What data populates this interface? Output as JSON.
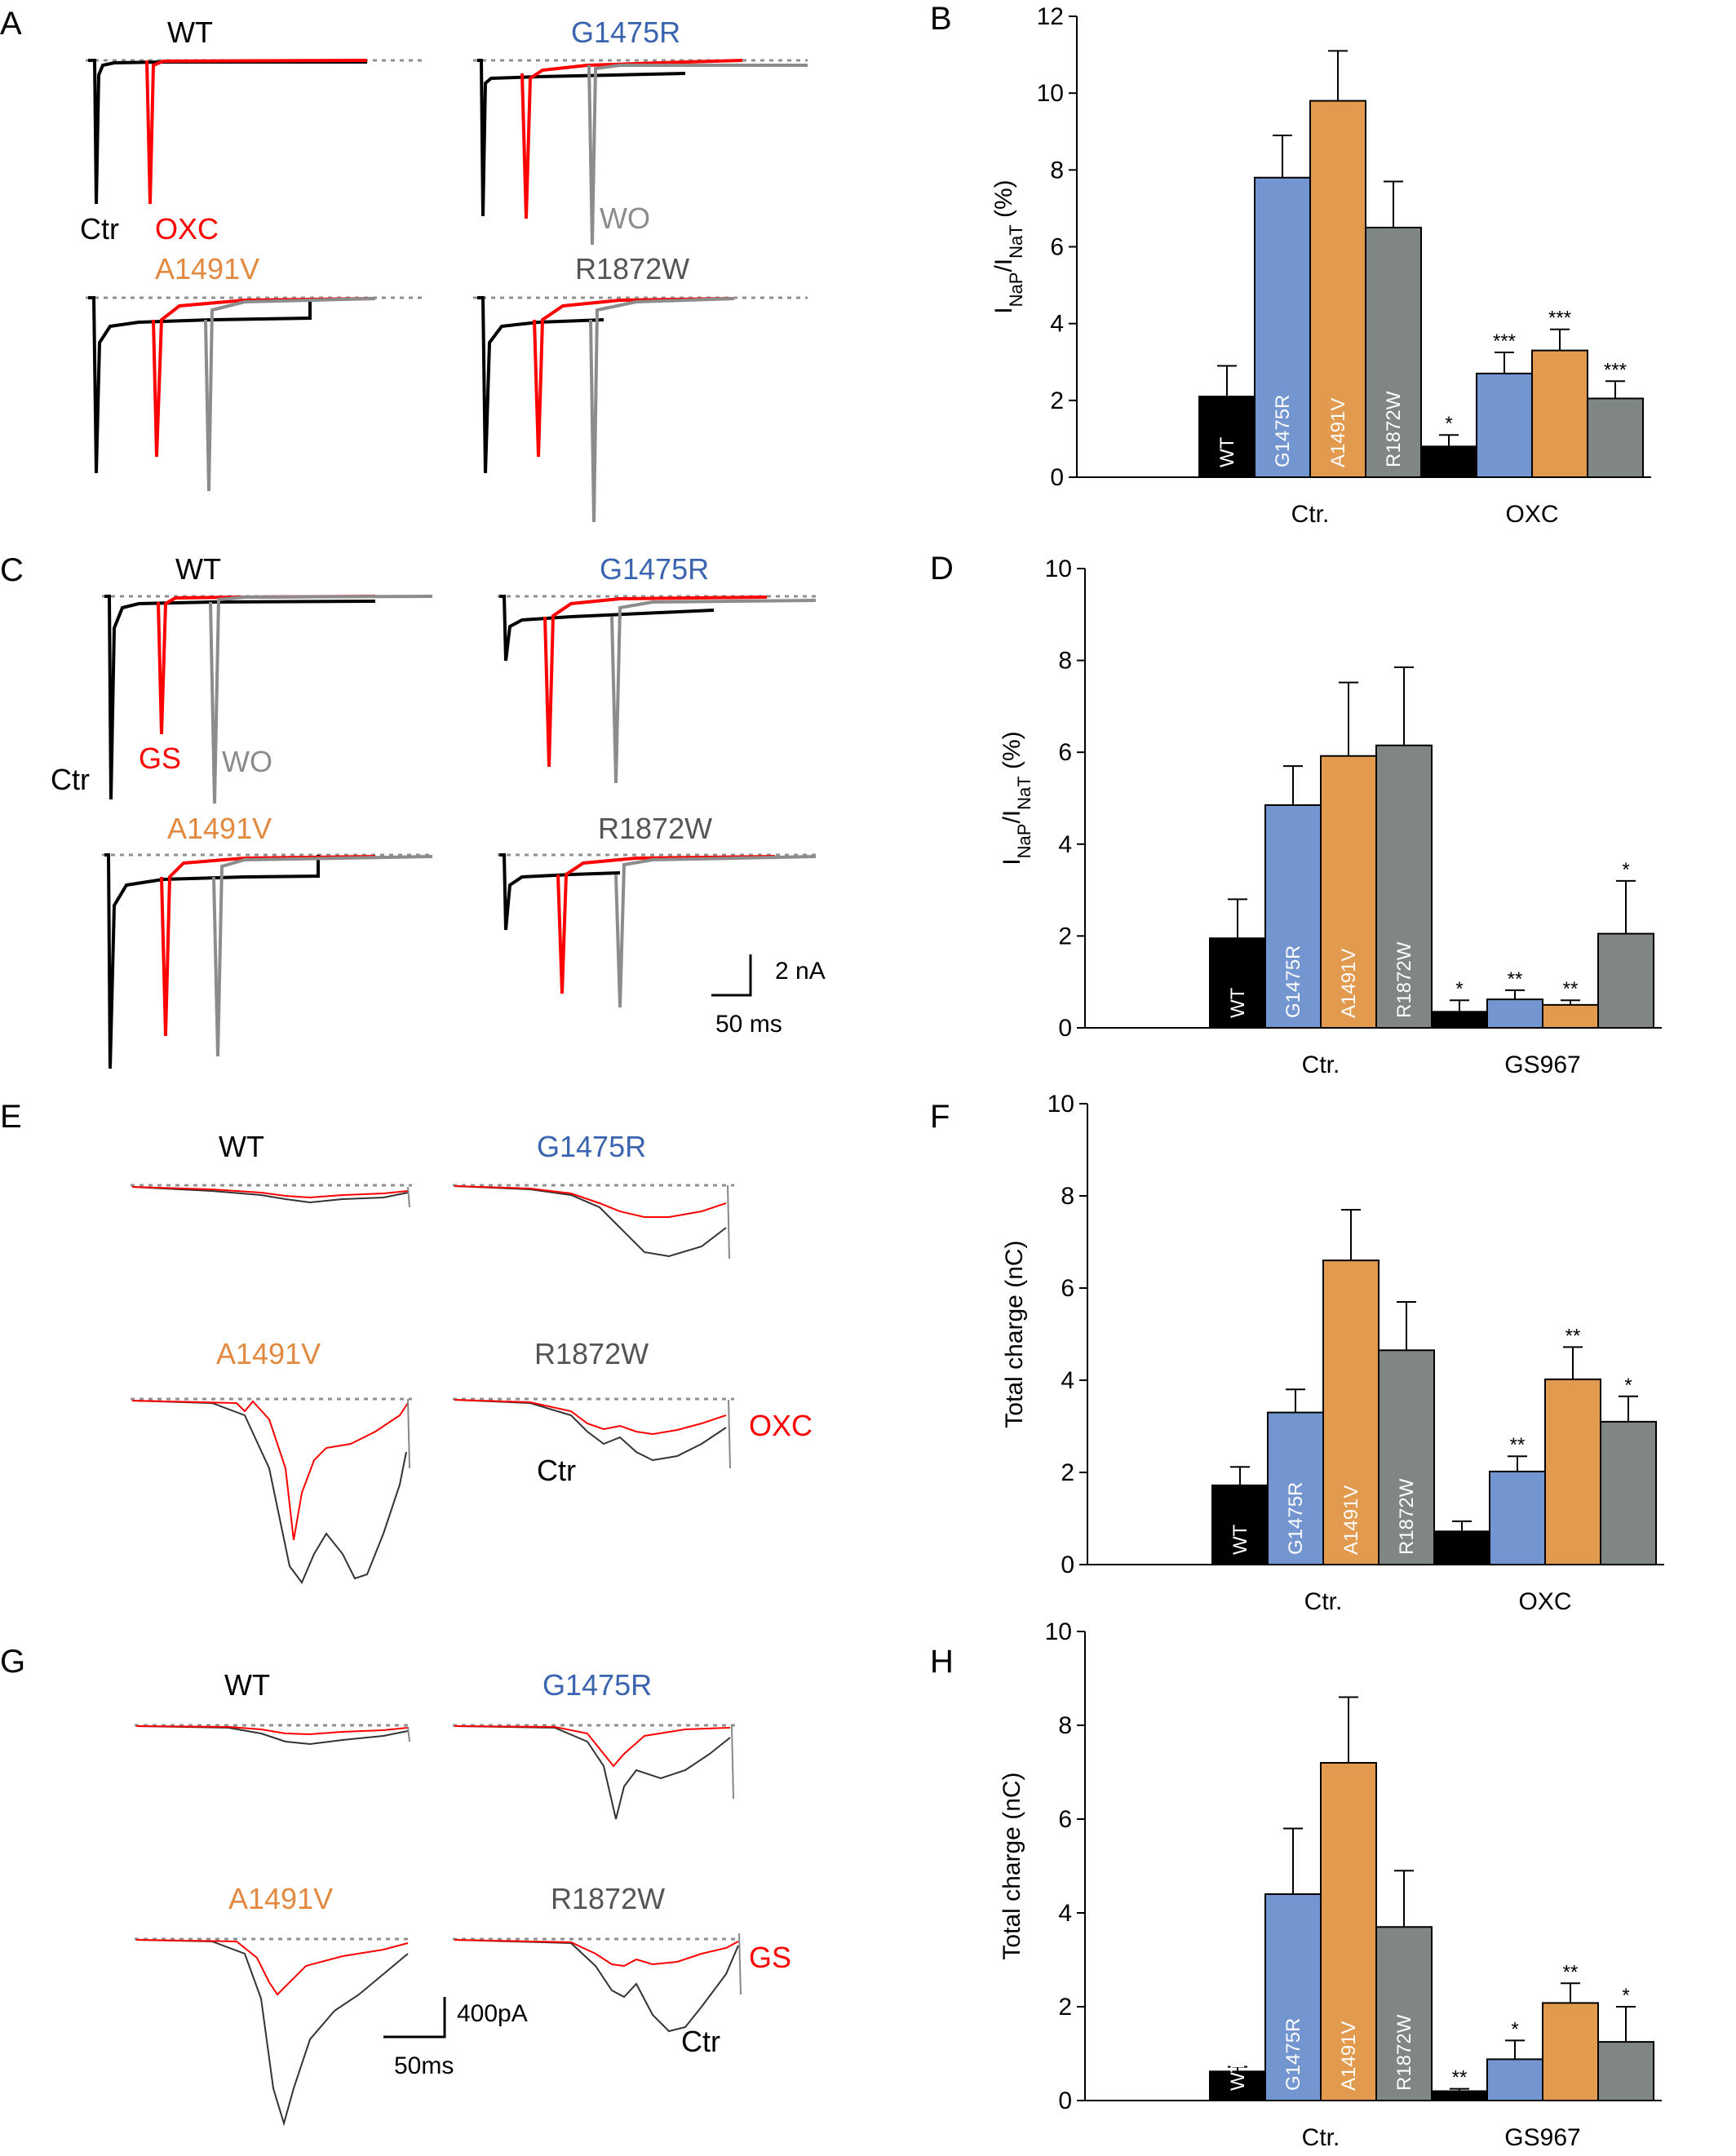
{
  "colors": {
    "WT": "#000000",
    "G1475R": "#7496d0",
    "A1491V": "#e29a4e",
    "R1872W": "#808585",
    "ctr": "#000000",
    "drug": "#ff0000",
    "wo": "#8c8c8c",
    "blueText": "#3a64b0",
    "orangeText": "#e2893f",
    "grayText": "#555555",
    "baseline": "#909090"
  },
  "panels": {
    "A": "A",
    "B": "B",
    "C": "C",
    "D": "D",
    "E": "E",
    "F": "F",
    "G": "G",
    "H": "H"
  },
  "traces": {
    "A": {
      "titles": [
        "WT",
        "G1475R",
        "A1491V",
        "R1872W"
      ],
      "labels": {
        "ctr": "Ctr",
        "drug": "OXC",
        "wo": "WO"
      }
    },
    "C": {
      "titles": [
        "WT",
        "G1475R",
        "A1491V",
        "R1872W"
      ],
      "labels": {
        "ctr": "Ctr",
        "drug": "GS",
        "wo": "WO"
      },
      "scale": {
        "y": "2 nA",
        "x": "50 ms"
      }
    },
    "E": {
      "titles": [
        "WT",
        "G1475R",
        "A1491V",
        "R1872W"
      ],
      "labels": {
        "drug": "OXC",
        "ctr": "Ctr"
      }
    },
    "G": {
      "titles": [
        "WT",
        "G1475R",
        "A1491V",
        "R1872W"
      ],
      "labels": {
        "drug": "GS",
        "ctr": "Ctr"
      },
      "scale": {
        "y": "400pA",
        "x": "50ms"
      }
    }
  },
  "chart_data": [
    {
      "panel": "B",
      "type": "bar",
      "ylabel": "INaP/INaT (%)",
      "ylim": [
        0,
        12
      ],
      "yticks": [
        0,
        2,
        4,
        6,
        8,
        10,
        12
      ],
      "groups": [
        "Ctr.",
        "OXC"
      ],
      "bar_labels": [
        "WT",
        "G1475R",
        "A1491V",
        "R1872W"
      ],
      "series": [
        {
          "name": "WT",
          "values": [
            2.1,
            0.8
          ],
          "errors": [
            0.8,
            0.3
          ]
        },
        {
          "name": "G1475R",
          "values": [
            7.8,
            2.7
          ],
          "errors": [
            1.1,
            0.55
          ]
        },
        {
          "name": "A1491V",
          "values": [
            9.8,
            3.3
          ],
          "errors": [
            1.3,
            0.55
          ]
        },
        {
          "name": "R1872W",
          "values": [
            6.5,
            2.05
          ],
          "errors": [
            1.2,
            0.45
          ]
        }
      ],
      "stars": [
        [
          "",
          "*"
        ],
        [
          "",
          "***"
        ],
        [
          "",
          "***"
        ],
        [
          "",
          "***"
        ]
      ]
    },
    {
      "panel": "D",
      "type": "bar",
      "ylabel": "INaP/INaT (%)",
      "ylim": [
        0,
        10
      ],
      "yticks": [
        0,
        2,
        4,
        6,
        8,
        10
      ],
      "groups": [
        "Ctr.",
        "GS967"
      ],
      "bar_labels": [
        "WT",
        "G1475R",
        "A1491V",
        "R1872W"
      ],
      "series": [
        {
          "name": "WT",
          "values": [
            1.95,
            0.35
          ],
          "errors": [
            0.85,
            0.25
          ]
        },
        {
          "name": "G1475R",
          "values": [
            4.85,
            0.62
          ],
          "errors": [
            0.85,
            0.2
          ]
        },
        {
          "name": "A1491V",
          "values": [
            5.92,
            0.5
          ],
          "errors": [
            1.6,
            0.1
          ]
        },
        {
          "name": "R1872W",
          "values": [
            6.15,
            2.05
          ],
          "errors": [
            1.7,
            1.15
          ]
        }
      ],
      "stars": [
        [
          "",
          "*"
        ],
        [
          "",
          "**"
        ],
        [
          "",
          "**"
        ],
        [
          "",
          "*"
        ]
      ]
    },
    {
      "panel": "F",
      "type": "bar",
      "ylabel": "Total charge (nC)",
      "ylim": [
        0,
        10
      ],
      "yticks": [
        0,
        2,
        4,
        6,
        8,
        10
      ],
      "groups": [
        "Ctr.",
        "OXC"
      ],
      "bar_labels": [
        "WT",
        "G1475R",
        "A1491V",
        "R1872W"
      ],
      "series": [
        {
          "name": "WT",
          "values": [
            1.72,
            0.72
          ],
          "errors": [
            0.4,
            0.22
          ]
        },
        {
          "name": "G1475R",
          "values": [
            3.3,
            2.02
          ],
          "errors": [
            0.5,
            0.33
          ]
        },
        {
          "name": "A1491V",
          "values": [
            6.6,
            4.02
          ],
          "errors": [
            1.1,
            0.7
          ]
        },
        {
          "name": "R1872W",
          "values": [
            4.65,
            3.1
          ],
          "errors": [
            1.05,
            0.55
          ]
        }
      ],
      "stars": [
        [
          "",
          ""
        ],
        [
          "",
          "**"
        ],
        [
          "",
          "**"
        ],
        [
          "",
          "*"
        ]
      ]
    },
    {
      "panel": "H",
      "type": "bar",
      "ylabel": "Total charge (nC)",
      "ylim": [
        0,
        10
      ],
      "yticks": [
        0,
        2,
        4,
        6,
        8,
        10
      ],
      "groups": [
        "Ctr.",
        "GS967"
      ],
      "bar_labels": [
        "WT",
        "G1475R",
        "A1491V",
        "R1872W"
      ],
      "series": [
        {
          "name": "WT",
          "values": [
            0.62,
            0.2
          ],
          "errors": [
            0.1,
            0.05
          ]
        },
        {
          "name": "G1475R",
          "values": [
            4.4,
            0.88
          ],
          "errors": [
            1.4,
            0.4
          ]
        },
        {
          "name": "A1491V",
          "values": [
            7.2,
            2.08
          ],
          "errors": [
            1.4,
            0.42
          ]
        },
        {
          "name": "R1872W",
          "values": [
            3.7,
            1.25
          ],
          "errors": [
            1.2,
            0.75
          ]
        }
      ],
      "stars": [
        [
          "",
          "**"
        ],
        [
          "",
          "*"
        ],
        [
          "",
          "**"
        ],
        [
          "",
          "*"
        ]
      ]
    }
  ]
}
